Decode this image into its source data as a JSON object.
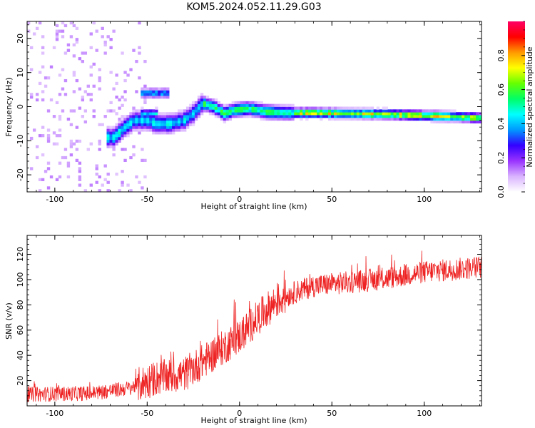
{
  "chart_data": [
    {
      "type": "heatmap",
      "title": "KOM5.2024.052.11.29.G03",
      "xlabel": "Height of straight line (km)",
      "ylabel": "Frequency (Hz)",
      "xlim": [
        -115,
        131
      ],
      "ylim": [
        -25,
        25
      ],
      "xticks": [
        -100,
        -50,
        0,
        50,
        100
      ],
      "yticks": [
        -20,
        -10,
        0,
        10,
        20
      ],
      "colorbar": {
        "label": "Normalized spectral amplitude",
        "range": [
          0,
          1
        ],
        "ticks": [
          0.0,
          0.2,
          0.4,
          0.6,
          0.8
        ],
        "colormap": [
          "#ffffff",
          "#d9b3ff",
          "#9933ff",
          "#3300ff",
          "#0099ff",
          "#00ffff",
          "#00ff66",
          "#66ff00",
          "#ffff00",
          "#ff9900",
          "#ff0000",
          "#ff0066"
        ]
      },
      "ridge": [
        {
          "x": -68,
          "y": -9
        },
        {
          "x": -62,
          "y": -6
        },
        {
          "x": -57,
          "y": -4
        },
        {
          "x": -50,
          "y": -4
        },
        {
          "x": -45,
          "y": -5
        },
        {
          "x": -38,
          "y": -5
        },
        {
          "x": -30,
          "y": -4
        },
        {
          "x": -25,
          "y": -2
        },
        {
          "x": -20,
          "y": 1
        },
        {
          "x": -14,
          "y": 0
        },
        {
          "x": -8,
          "y": -2
        },
        {
          "x": -3,
          "y": -1
        },
        {
          "x": 5,
          "y": -0.5
        },
        {
          "x": 15,
          "y": -1.5
        },
        {
          "x": 25,
          "y": -1.8
        },
        {
          "x": 40,
          "y": -1.8
        },
        {
          "x": 60,
          "y": -2
        },
        {
          "x": 80,
          "y": -2.2
        },
        {
          "x": 100,
          "y": -2.6
        },
        {
          "x": 120,
          "y": -3
        },
        {
          "x": 131,
          "y": -3.3
        }
      ],
      "side_patches": [
        {
          "x0": -53,
          "x1": -38,
          "y": 4,
          "amp": 0.45
        },
        {
          "x0": -53,
          "x1": -45,
          "y": -2,
          "amp": 0.5
        }
      ]
    },
    {
      "type": "line",
      "xlabel": "Height of straight line (km)",
      "ylabel": "SNR (v/v)",
      "xlim": [
        -115,
        131
      ],
      "ylim": [
        0,
        135
      ],
      "xticks": [
        -100,
        -50,
        0,
        50,
        100
      ],
      "yticks": [
        20,
        40,
        60,
        80,
        100,
        120
      ],
      "color": "#ee2222",
      "trend": [
        {
          "x": -115,
          "y": 9
        },
        {
          "x": -80,
          "y": 10
        },
        {
          "x": -60,
          "y": 14
        },
        {
          "x": -45,
          "y": 22
        },
        {
          "x": -30,
          "y": 25
        },
        {
          "x": -20,
          "y": 35
        },
        {
          "x": -10,
          "y": 45
        },
        {
          "x": 0,
          "y": 55
        },
        {
          "x": 10,
          "y": 70
        },
        {
          "x": 20,
          "y": 83
        },
        {
          "x": 30,
          "y": 90
        },
        {
          "x": 40,
          "y": 95
        },
        {
          "x": 60,
          "y": 98
        },
        {
          "x": 80,
          "y": 101
        },
        {
          "x": 100,
          "y": 106
        },
        {
          "x": 131,
          "y": 110
        }
      ]
    }
  ]
}
